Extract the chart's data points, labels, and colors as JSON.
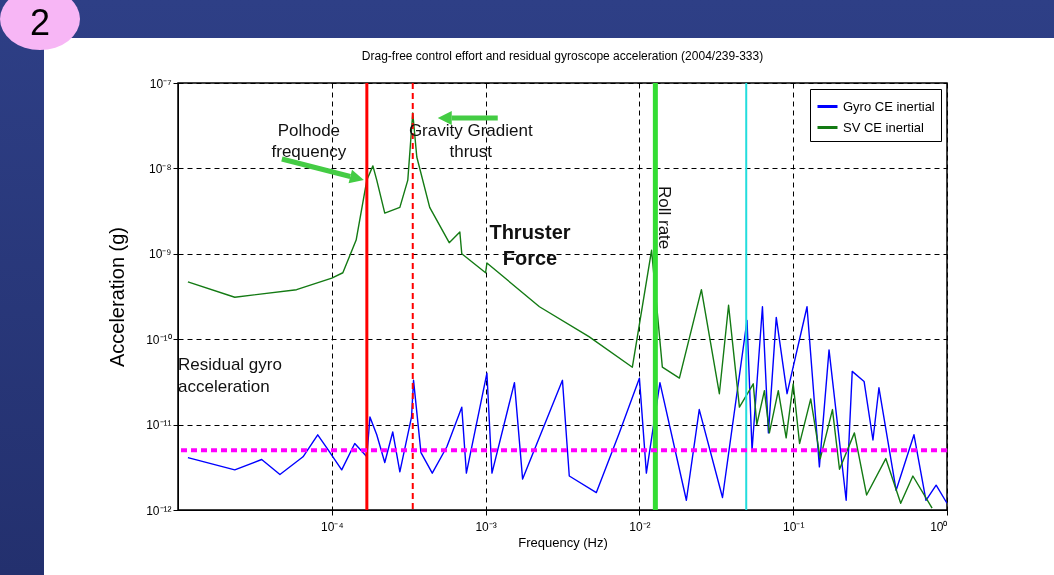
{
  "chart_data": {
    "type": "line",
    "title": "Drag-free control effort and residual gyroscope acceleration (2004/239-333)",
    "xlabel": "Frequency (Hz)",
    "ylabel": "Acceleration (g)",
    "log": "xy",
    "grid": true,
    "legend": "top right",
    "xlim": [
      1e-05,
      1
    ],
    "ylim": [
      1e-12,
      1e-07
    ],
    "xticks": [
      {
        "value": 0.0001,
        "label": "10⁻⁴"
      },
      {
        "value": 0.001,
        "label": "10⁻³"
      },
      {
        "value": 0.01,
        "label": "10⁻²"
      },
      {
        "value": 0.1,
        "label": "10⁻¹"
      },
      {
        "value": 1,
        "label": "10⁰"
      }
    ],
    "yticks": [
      {
        "value": 1e-12,
        "label": "10⁻¹²"
      },
      {
        "value": 1e-11,
        "label": "10⁻¹¹"
      },
      {
        "value": 1e-10,
        "label": "10⁻¹⁰"
      },
      {
        "value": 1e-09,
        "label": "10⁻⁹"
      },
      {
        "value": 1e-08,
        "label": "10⁻⁸"
      },
      {
        "value": 1e-07,
        "label": "10⁻⁷"
      }
    ],
    "series": [
      {
        "name": "Gyro CE inertial",
        "color": "#0000ff",
        "x": [
          1.16e-05,
          2.34e-05,
          3.5e-05,
          4.6e-05,
          6.5e-05,
          8.1e-05,
          9.3e-05,
          0.000116,
          0.000141,
          0.000169,
          0.000177,
          0.000196,
          0.000221,
          0.000249,
          0.000277,
          0.00033,
          0.00034,
          0.00038,
          0.00045,
          0.00056,
          0.0007,
          0.00075,
          0.00102,
          0.0011,
          0.00154,
          0.00174,
          0.00316,
          0.0035,
          0.00525,
          0.0074,
          0.01,
          0.0111,
          0.0136,
          0.0202,
          0.0245,
          0.0347,
          0.0501,
          0.054,
          0.0631,
          0.069,
          0.0776,
          0.0912,
          0.123,
          0.148,
          0.171,
          0.221,
          0.242,
          0.289,
          0.33,
          0.361,
          0.467,
          0.61,
          0.73,
          0.85,
          1
        ],
        "values": [
          4.1e-12,
          2.95e-12,
          3.9e-12,
          2.6e-12,
          4.2e-12,
          7.6e-12,
          5.3e-12,
          2.95e-12,
          6e-12,
          4.2e-12,
          1.23e-11,
          7.6e-12,
          3.6e-12,
          8.2e-12,
          2.8e-12,
          1.23e-11,
          3.3e-11,
          4.7e-12,
          2.7e-12,
          5.5e-12,
          1.6e-11,
          2.7e-12,
          4e-11,
          2.7e-12,
          3.1e-11,
          2.3e-12,
          3.3e-11,
          2.5e-12,
          1.6e-12,
          8e-12,
          3.5e-11,
          2.7e-12,
          3.1e-11,
          1.3e-12,
          1.5e-11,
          1.4e-12,
          1.66e-10,
          5e-12,
          2.4e-10,
          8e-12,
          1.8e-10,
          2.3e-11,
          2.4e-10,
          3.2e-12,
          7.5e-11,
          1.3e-12,
          4.2e-11,
          3.2e-11,
          6.6e-12,
          2.7e-11,
          1.7e-12,
          7.6e-12,
          1.3e-12,
          1.95e-12,
          1.2e-12
        ]
      },
      {
        "name": "SV CE inertial",
        "color": "#137a13",
        "x": [
          1.16e-05,
          2.34e-05,
          5.9e-05,
          0.0001,
          0.000118,
          0.000144,
          0.000169,
          0.000185,
          0.000196,
          0.000221,
          0.000277,
          0.000312,
          0.000336,
          0.000357,
          0.000433,
          0.00058,
          0.00068,
          0.0007,
          0.001,
          0.00102,
          0.00224,
          0.0047,
          0.009,
          0.012,
          0.0141,
          0.0182,
          0.0253,
          0.0331,
          0.038,
          0.0447,
          0.055,
          0.058,
          0.065,
          0.07,
          0.08,
          0.09,
          0.1,
          0.11,
          0.13,
          0.15,
          0.18,
          0.2,
          0.25,
          0.3,
          0.4,
          0.5,
          0.6,
          0.8
        ],
        "values": [
          4.7e-10,
          3.1e-10,
          3.8e-10,
          5.2e-10,
          6e-10,
          1.45e-09,
          7.3e-09,
          1.07e-08,
          7.3e-09,
          3e-09,
          3.5e-09,
          7.3e-09,
          4.45e-08,
          1.36e-08,
          3.5e-09,
          1.35e-09,
          1.8e-09,
          1e-09,
          6e-10,
          7.8e-10,
          2.4e-10,
          1.07e-10,
          4.7e-11,
          1.1e-09,
          4.7e-11,
          3.5e-11,
          3.8e-10,
          2.3e-11,
          2.5e-10,
          1.6e-11,
          3e-11,
          1e-11,
          2.5e-11,
          8e-12,
          2.5e-11,
          7e-12,
          3e-11,
          6e-12,
          2e-11,
          4e-12,
          1.5e-11,
          3e-12,
          8e-12,
          1.5e-12,
          4e-12,
          1.2e-12,
          2.5e-12,
          1.05e-12
        ]
      }
    ],
    "ref_lines": [
      {
        "axis": "x",
        "value": 0.000169,
        "label": "Polhode frequency",
        "color": "#ff0000"
      },
      {
        "axis": "x",
        "value": 0.000336,
        "label": "Gravity Gradient thrust",
        "color": "#ff0000",
        "line_style": "dashed"
      },
      {
        "axis": "x",
        "value": 0.0127,
        "label": "Roll rate",
        "color": "#33dd33"
      },
      {
        "axis": "x",
        "value": 0.0495,
        "color": "#22dddd"
      },
      {
        "axis": "y",
        "value": 5e-12,
        "color": "#ff00ff",
        "line_style": "dashed"
      }
    ],
    "annotations": [
      "2",
      "Thruster Force",
      "Residual gyro acceleration"
    ]
  }
}
